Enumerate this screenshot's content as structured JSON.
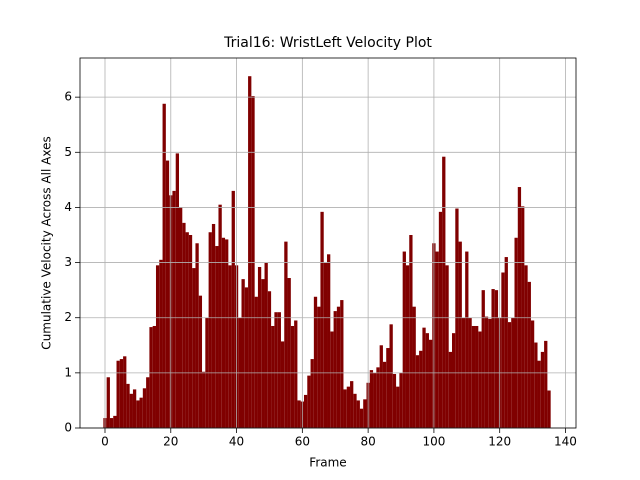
{
  "chart_data": {
    "type": "bar",
    "title": "Trial16: WristLeft Velocity Plot",
    "xlabel": "Frame",
    "ylabel": "Cumulative Velocity Across All Axes",
    "color": "#800000",
    "x": [
      0,
      1,
      2,
      3,
      4,
      5,
      6,
      7,
      8,
      9,
      10,
      11,
      12,
      13,
      14,
      15,
      16,
      17,
      18,
      19,
      20,
      21,
      22,
      23,
      24,
      25,
      26,
      27,
      28,
      29,
      30,
      31,
      32,
      33,
      34,
      35,
      36,
      37,
      38,
      39,
      40,
      41,
      42,
      43,
      44,
      45,
      46,
      47,
      48,
      49,
      50,
      51,
      52,
      53,
      54,
      55,
      56,
      57,
      58,
      59,
      60,
      61,
      62,
      63,
      64,
      65,
      66,
      67,
      68,
      69,
      70,
      71,
      72,
      73,
      74,
      75,
      76,
      77,
      78,
      79,
      80,
      81,
      82,
      83,
      84,
      85,
      86,
      87,
      88,
      89,
      90,
      91,
      92,
      93,
      94,
      95,
      96,
      97,
      98,
      99,
      100,
      101,
      102,
      103,
      104,
      105,
      106,
      107,
      108,
      109,
      110,
      111,
      112,
      113,
      114,
      115,
      116,
      117,
      118,
      119,
      120,
      121,
      122,
      123,
      124,
      125,
      126,
      127,
      128,
      129,
      130,
      131,
      132,
      133,
      134,
      135
    ],
    "values": [
      0.18,
      0.92,
      0.18,
      0.22,
      1.22,
      1.25,
      1.3,
      0.8,
      0.62,
      0.7,
      0.5,
      0.55,
      0.72,
      0.92,
      1.83,
      1.85,
      2.95,
      3.05,
      5.88,
      4.85,
      4.22,
      4.3,
      4.98,
      4.0,
      3.72,
      3.55,
      3.5,
      2.9,
      3.35,
      2.4,
      1.02,
      2.0,
      3.55,
      3.7,
      3.3,
      4.05,
      3.45,
      3.42,
      2.95,
      4.3,
      2.95,
      2.0,
      2.7,
      2.55,
      6.38,
      6.02,
      2.38,
      2.92,
      2.7,
      3.0,
      2.48,
      1.85,
      2.1,
      2.1,
      1.57,
      3.38,
      2.72,
      1.85,
      1.95,
      0.5,
      0.48,
      0.6,
      0.95,
      1.25,
      2.38,
      2.2,
      3.92,
      3.0,
      3.15,
      1.75,
      2.12,
      2.2,
      2.32,
      0.7,
      0.75,
      0.85,
      0.62,
      0.5,
      0.35,
      0.52,
      0.82,
      1.05,
      1.0,
      1.1,
      1.5,
      1.2,
      1.45,
      1.88,
      0.98,
      0.75,
      1.0,
      3.2,
      2.95,
      3.5,
      2.2,
      1.32,
      1.4,
      1.82,
      1.72,
      1.6,
      3.35,
      3.2,
      3.92,
      4.92,
      2.95,
      1.38,
      1.72,
      3.98,
      3.38,
      2.0,
      3.2,
      2.0,
      1.85,
      1.85,
      1.75,
      2.5,
      2.02,
      1.98,
      2.52,
      2.5,
      2.0,
      2.82,
      3.1,
      1.92,
      2.0,
      3.45,
      4.37,
      4.02,
      2.95,
      2.65,
      1.95,
      1.55,
      1.22,
      1.38,
      1.58,
      0.68
    ],
    "xlim": [
      -7.6,
      143.2
    ],
    "ylim": [
      0,
      6.71
    ],
    "xticks": [
      0,
      20,
      40,
      60,
      80,
      100,
      120,
      140
    ],
    "yticks": [
      0,
      1,
      2,
      3,
      4,
      5,
      6
    ],
    "grid": true
  }
}
